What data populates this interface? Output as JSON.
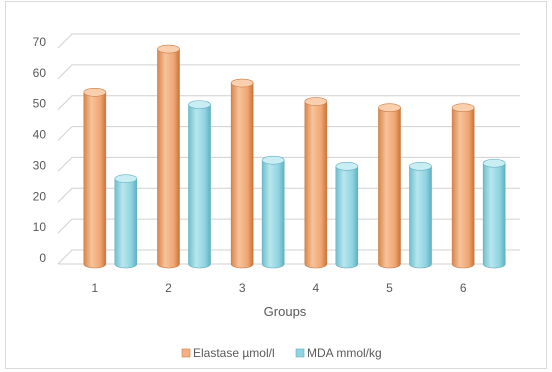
{
  "chart_data": {
    "type": "bar",
    "style": "3d-cylinder",
    "categories": [
      "1",
      "2",
      "3",
      "4",
      "5",
      "6"
    ],
    "series": [
      {
        "name": "Elastase µmol/l",
        "color": "#f4b183",
        "values": [
          55,
          69,
          58,
          52,
          50,
          50
        ]
      },
      {
        "name": "MDA mmol/kg",
        "color": "#8fd4e0",
        "values": [
          27,
          51,
          33,
          31,
          31,
          32
        ]
      }
    ],
    "title": "",
    "xlabel": "Groups",
    "ylabel": "",
    "ylim": [
      0,
      70
    ],
    "yticks": [
      0,
      10,
      20,
      30,
      40,
      50,
      60,
      70
    ],
    "grid": true,
    "legend_position": "bottom"
  }
}
